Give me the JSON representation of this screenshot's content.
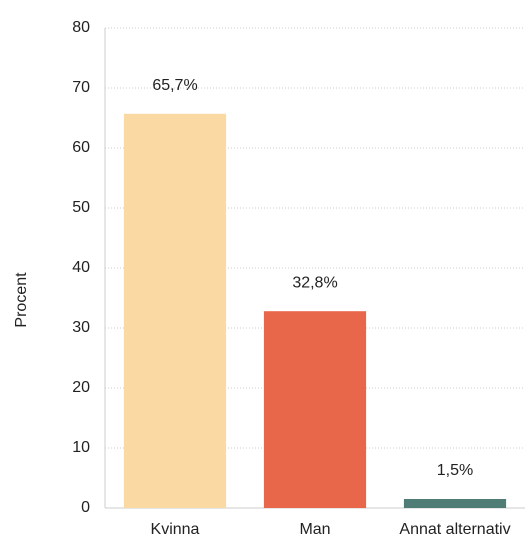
{
  "chart_data": {
    "type": "bar",
    "y_label": "Procent",
    "categories": [
      "Kvinna",
      "Man",
      "Annat alternativ"
    ],
    "values": [
      65.7,
      32.8,
      1.5
    ],
    "value_labels": [
      "65,7%",
      "32,8%",
      "1,5%"
    ],
    "colors": [
      "#fbd9a3",
      "#e8664a",
      "#4f7c74"
    ],
    "ylim": [
      0,
      80
    ],
    "yticks": [
      0,
      10,
      20,
      30,
      40,
      50,
      60,
      70,
      80
    ],
    "grid": true
  }
}
